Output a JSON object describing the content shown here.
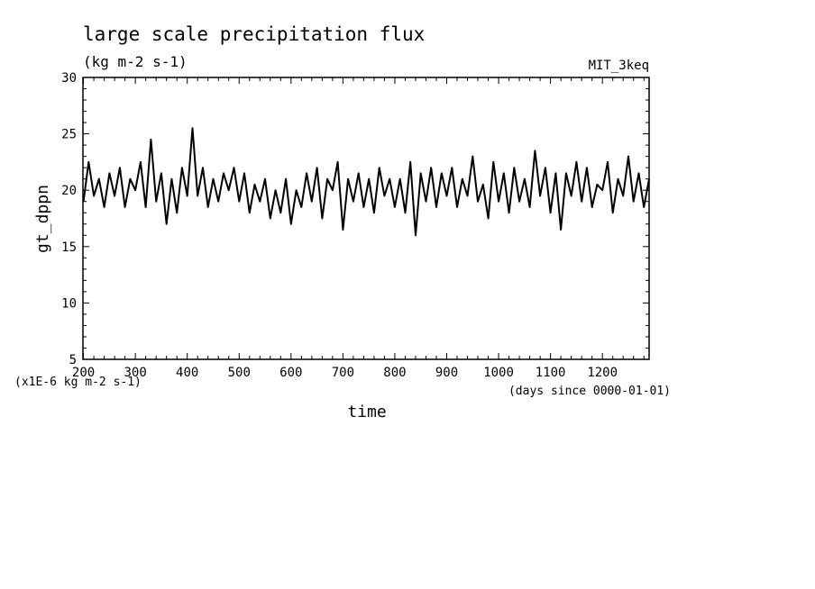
{
  "chart_data": {
    "type": "line",
    "title": "large scale precipitation flux",
    "subtitle": "(kg m-2 s-1)",
    "annotation_right": "MIT_3keq",
    "xlabel": "time",
    "xunits": "(days since 0000-01-01)",
    "ylabel": "gt_dppn",
    "yunits": "(x1E-6 kg m-2 s-1)",
    "xlim": [
      199,
      1290
    ],
    "ylim": [
      5,
      30
    ],
    "xticks": [
      200,
      300,
      400,
      500,
      600,
      700,
      800,
      900,
      1000,
      1100,
      1200
    ],
    "yticks": [
      5,
      10,
      15,
      20,
      25,
      30
    ],
    "grid": false,
    "line_color": "#000000",
    "series": [
      {
        "x": [
          200,
          210,
          220,
          230,
          240,
          250,
          260,
          270,
          280,
          290,
          300,
          310,
          320,
          330,
          340,
          350,
          360,
          370,
          380,
          390,
          400,
          410,
          420,
          430,
          440,
          450,
          460,
          470,
          480,
          490,
          500,
          510,
          520,
          530,
          540,
          550,
          560,
          570,
          580,
          590,
          600,
          610,
          620,
          630,
          640,
          650,
          660,
          670,
          680,
          690,
          700,
          710,
          720,
          730,
          740,
          750,
          760,
          770,
          780,
          790,
          800,
          810,
          820,
          830,
          840,
          850,
          860,
          870,
          880,
          890,
          900,
          910,
          920,
          930,
          940,
          950,
          960,
          970,
          980,
          990,
          1000,
          1010,
          1020,
          1030,
          1040,
          1050,
          1060,
          1070,
          1080,
          1090,
          1100,
          1110,
          1120,
          1130,
          1140,
          1150,
          1160,
          1170,
          1180,
          1190,
          1200,
          1210,
          1220,
          1230,
          1240,
          1250,
          1260,
          1270,
          1280,
          1290
        ],
        "values": [
          19.0,
          22.5,
          19.5,
          21.0,
          18.5,
          21.5,
          19.5,
          22.0,
          18.5,
          21.0,
          20.0,
          22.5,
          18.5,
          24.5,
          19.0,
          21.5,
          17.0,
          21.0,
          18.0,
          22.0,
          19.5,
          25.5,
          19.5,
          22.0,
          18.5,
          21.0,
          19.0,
          21.5,
          20.0,
          22.0,
          19.0,
          21.5,
          18.0,
          20.5,
          19.0,
          21.0,
          17.5,
          20.0,
          18.0,
          21.0,
          17.0,
          20.0,
          18.5,
          21.5,
          19.0,
          22.0,
          17.5,
          21.0,
          20.0,
          22.5,
          16.5,
          21.0,
          19.0,
          21.5,
          18.5,
          21.0,
          18.0,
          22.0,
          19.5,
          21.0,
          18.5,
          21.0,
          18.0,
          22.5,
          16.0,
          21.5,
          19.0,
          22.0,
          18.5,
          21.5,
          19.5,
          22.0,
          18.5,
          21.0,
          19.5,
          23.0,
          19.0,
          20.5,
          17.5,
          22.5,
          19.0,
          21.5,
          18.0,
          22.0,
          19.0,
          21.0,
          18.5,
          23.5,
          19.5,
          22.0,
          18.0,
          21.5,
          16.5,
          21.5,
          19.5,
          22.5,
          19.0,
          22.0,
          18.5,
          20.5,
          20.0,
          22.5,
          18.0,
          21.0,
          19.5,
          23.0,
          19.0,
          21.5,
          18.5,
          21.0
        ]
      }
    ]
  }
}
